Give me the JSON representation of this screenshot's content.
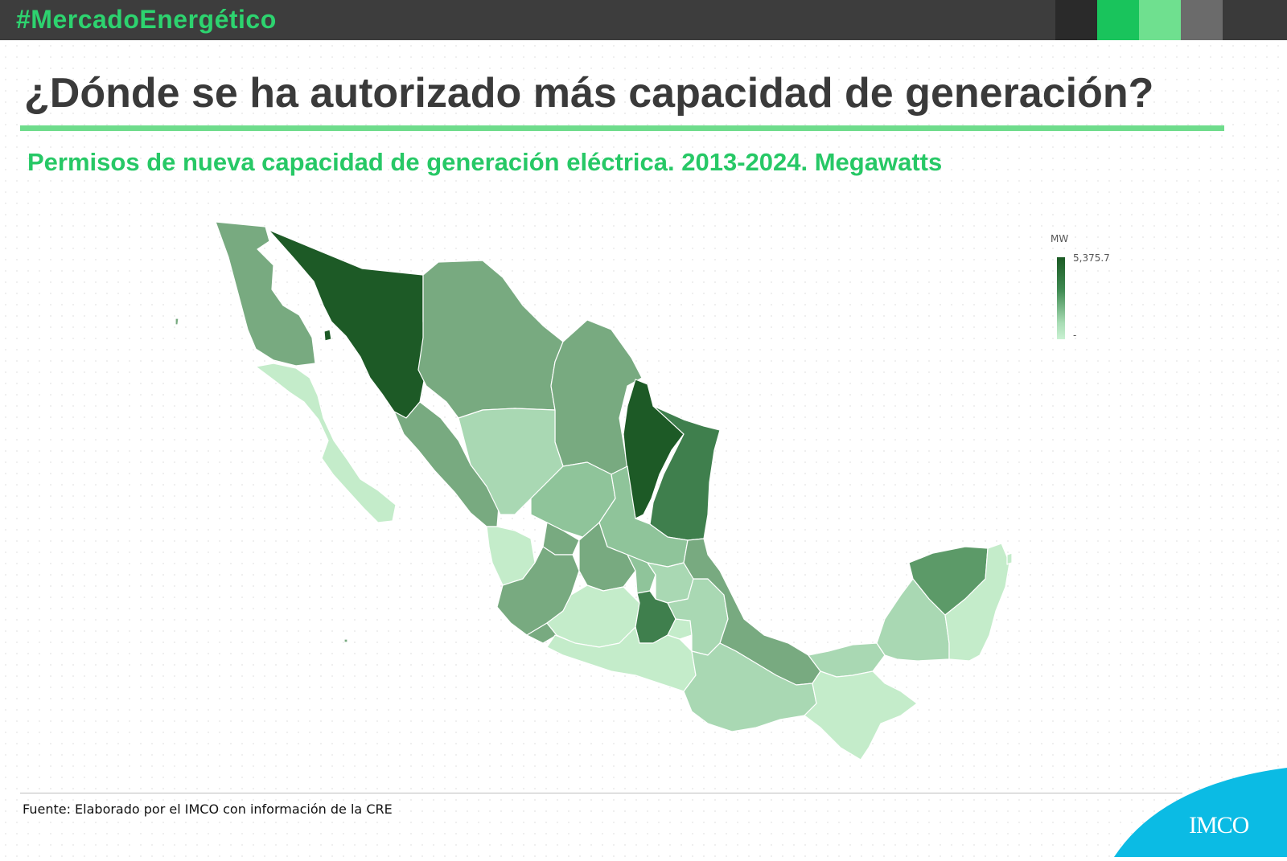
{
  "header": {
    "hashtag": "#MercadoEnergético",
    "swatch_colors": [
      "#2a2a2a",
      "#19c45c",
      "#6fe08f",
      "#6b6b6b",
      "#3a3a3a"
    ]
  },
  "title": "¿Dónde se ha autorizado más capacidad de generación?",
  "subtitle": "Permisos de nueva capacidad de generación eléctrica. 2013-2024. Megawatts",
  "legend": {
    "unit": "MW",
    "max_label": "5,375.7",
    "min_label": "-"
  },
  "map": {
    "colors": {
      "darkest": "#1d5a26",
      "dark": "#3f7f4d",
      "mid_dark": "#5c9a68",
      "mid": "#78aa80",
      "mid_light": "#8fc49a",
      "light": "#a9d8b3",
      "lightest": "#c4ecca"
    }
  },
  "footer": {
    "source": "Fuente: Elaborado por el IMCO con información de la CRE",
    "logo_text": "IMCO",
    "logo_color": "#0bbbe4"
  }
}
